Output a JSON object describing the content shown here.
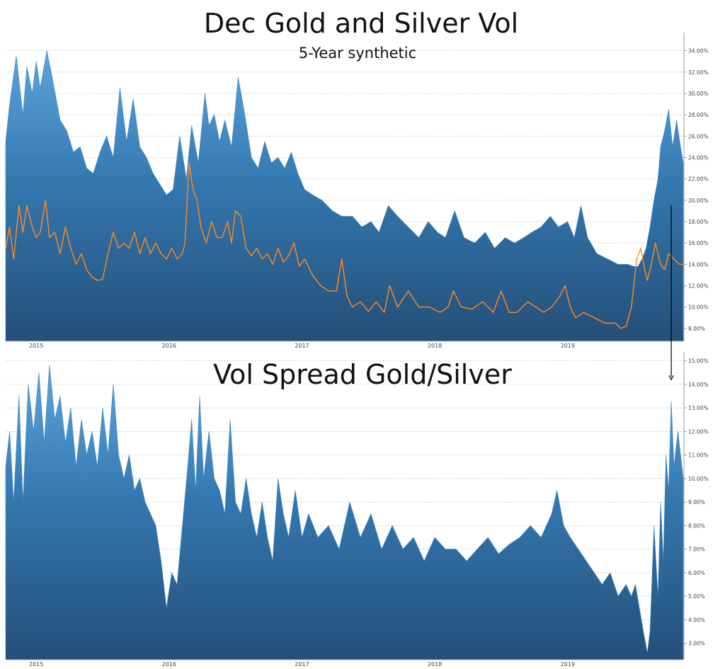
{
  "chart_data": [
    {
      "type": "area",
      "title": "Dec Gold and Silver Vol",
      "subtitle": "5-Year synthetic",
      "x_tick_labels": [
        "2015",
        "2016",
        "2017",
        "2018",
        "2019"
      ],
      "x_tick_years": [
        2015,
        2016,
        2017,
        2018,
        2019
      ],
      "xlim": [
        2014.77,
        2019.87
      ],
      "ylim": [
        6.8,
        35.3
      ],
      "y_ticks": [
        8,
        10,
        12,
        14,
        16,
        18,
        20,
        22,
        24,
        26,
        28,
        30,
        32,
        34
      ],
      "y_tick_labels": [
        "8.00%",
        "10.00%",
        "12.00%",
        "14.00%",
        "16.00%",
        "18.00%",
        "20.00%",
        "22.00%",
        "24.00%",
        "26.00%",
        "28.00%",
        "30.00%",
        "32.00%",
        "34.00%"
      ],
      "grid": true,
      "series": [
        {
          "kind": "area",
          "color": "#3a87c4",
          "x": [
            2014.77,
            2014.8,
            2014.85,
            2014.9,
            2014.93,
            2014.97,
            2015.0,
            2015.03,
            2015.08,
            2015.12,
            2015.18,
            2015.23,
            2015.28,
            2015.33,
            2015.38,
            2015.43,
            2015.48,
            2015.53,
            2015.58,
            2015.63,
            2015.68,
            2015.73,
            2015.78,
            2015.83,
            2015.88,
            2015.93,
            2015.98,
            2016.03,
            2016.08,
            2016.13,
            2016.17,
            2016.22,
            2016.27,
            2016.3,
            2016.34,
            2016.38,
            2016.42,
            2016.47,
            2016.52,
            2016.57,
            2016.62,
            2016.67,
            2016.72,
            2016.77,
            2016.82,
            2016.87,
            2016.92,
            2016.97,
            2017.02,
            2017.08,
            2017.15,
            2017.23,
            2017.3,
            2017.38,
            2017.45,
            2017.52,
            2017.58,
            2017.65,
            2017.72,
            2017.8,
            2017.88,
            2017.95,
            2018.02,
            2018.08,
            2018.15,
            2018.22,
            2018.3,
            2018.38,
            2018.45,
            2018.53,
            2018.6,
            2018.67,
            2018.73,
            2018.8,
            2018.87,
            2018.93,
            2019.0,
            2019.05,
            2019.1,
            2019.15,
            2019.22,
            2019.3,
            2019.38,
            2019.45,
            2019.5,
            2019.53,
            2019.56,
            2019.59,
            2019.62,
            2019.65,
            2019.68,
            2019.7,
            2019.73,
            2019.76,
            2019.79,
            2019.82,
            2019.85,
            2019.87
          ],
          "values": [
            25.5,
            29.0,
            33.5,
            28.0,
            32.5,
            30.0,
            33.0,
            30.5,
            34.0,
            31.5,
            27.5,
            26.5,
            24.5,
            25.0,
            23.0,
            22.5,
            24.5,
            26.0,
            24.0,
            30.5,
            25.5,
            29.5,
            25.0,
            24.0,
            22.5,
            21.5,
            20.5,
            21.0,
            26.0,
            22.0,
            27.0,
            23.5,
            30.0,
            27.0,
            28.0,
            25.5,
            27.5,
            25.0,
            31.5,
            28.0,
            24.0,
            23.0,
            25.5,
            23.5,
            24.0,
            23.0,
            24.5,
            22.5,
            21.0,
            20.5,
            20.0,
            19.0,
            18.5,
            18.5,
            17.5,
            18.0,
            17.0,
            19.5,
            18.5,
            17.5,
            16.5,
            18.0,
            17.0,
            16.5,
            19.0,
            16.5,
            16.0,
            17.0,
            15.5,
            16.5,
            16.0,
            16.5,
            17.0,
            17.5,
            18.5,
            17.5,
            18.0,
            16.5,
            19.5,
            16.5,
            15.0,
            14.5,
            14.0,
            14.0,
            13.8,
            13.8,
            14.5,
            15.5,
            17.5,
            20.0,
            22.0,
            25.0,
            26.5,
            28.5,
            25.0,
            27.5,
            25.0,
            23.5
          ]
        },
        {
          "kind": "line",
          "color": "#ff8a1f",
          "x": [
            2014.77,
            2014.8,
            2014.83,
            2014.87,
            2014.9,
            2014.93,
            2014.97,
            2015.0,
            2015.03,
            2015.07,
            2015.1,
            2015.14,
            2015.18,
            2015.22,
            2015.26,
            2015.3,
            2015.34,
            2015.38,
            2015.42,
            2015.46,
            2015.5,
            2015.54,
            2015.58,
            2015.62,
            2015.66,
            2015.7,
            2015.74,
            2015.78,
            2015.82,
            2015.86,
            2015.9,
            2015.94,
            2015.98,
            2016.02,
            2016.06,
            2016.1,
            2016.12,
            2016.15,
            2016.18,
            2016.21,
            2016.24,
            2016.28,
            2016.32,
            2016.36,
            2016.4,
            2016.44,
            2016.47,
            2016.5,
            2016.54,
            2016.58,
            2016.62,
            2016.66,
            2016.7,
            2016.74,
            2016.78,
            2016.82,
            2016.86,
            2016.9,
            2016.94,
            2016.98,
            2017.02,
            2017.08,
            2017.14,
            2017.2,
            2017.26,
            2017.3,
            2017.34,
            2017.38,
            2017.44,
            2017.5,
            2017.56,
            2017.62,
            2017.66,
            2017.72,
            2017.8,
            2017.88,
            2017.96,
            2018.04,
            2018.1,
            2018.14,
            2018.2,
            2018.28,
            2018.36,
            2018.44,
            2018.5,
            2018.56,
            2018.62,
            2018.7,
            2018.76,
            2018.82,
            2018.88,
            2018.94,
            2018.98,
            2019.02,
            2019.06,
            2019.12,
            2019.2,
            2019.28,
            2019.36,
            2019.4,
            2019.44,
            2019.48,
            2019.52,
            2019.55,
            2019.58,
            2019.6,
            2019.63,
            2019.66,
            2019.7,
            2019.73,
            2019.76,
            2019.8,
            2019.84,
            2019.87
          ],
          "values": [
            15.5,
            17.5,
            14.5,
            19.5,
            17.0,
            19.5,
            17.5,
            16.5,
            17.0,
            20.0,
            16.5,
            17.0,
            15.0,
            17.5,
            15.5,
            14.0,
            15.0,
            13.5,
            12.8,
            12.5,
            12.6,
            15.0,
            17.0,
            15.5,
            16.0,
            15.5,
            17.0,
            15.0,
            16.5,
            15.0,
            16.0,
            15.0,
            14.5,
            15.5,
            14.5,
            15.0,
            16.0,
            23.5,
            21.0,
            20.0,
            17.5,
            16.0,
            18.0,
            16.5,
            16.5,
            18.0,
            16.0,
            19.0,
            18.5,
            15.5,
            14.8,
            15.5,
            14.5,
            15.0,
            14.0,
            15.5,
            14.2,
            14.8,
            16.0,
            13.8,
            14.5,
            13.0,
            12.0,
            11.5,
            11.5,
            14.5,
            11.0,
            10.0,
            10.5,
            9.6,
            10.5,
            9.5,
            12.0,
            10.0,
            11.5,
            10.0,
            10.0,
            9.5,
            10.0,
            11.5,
            10.0,
            9.8,
            10.5,
            9.5,
            11.5,
            9.5,
            9.5,
            10.5,
            10.0,
            9.5,
            10.0,
            11.0,
            12.0,
            10.0,
            9.0,
            9.5,
            9.0,
            8.5,
            8.5,
            8.0,
            8.2,
            10.0,
            14.5,
            15.5,
            13.5,
            12.5,
            14.0,
            16.0,
            14.0,
            13.5,
            15.0,
            14.5,
            14.0,
            14.0
          ]
        }
      ],
      "annotations": [
        {
          "type": "arrow",
          "x": 2019.78,
          "y_from": 19.5,
          "to_lower_chart_y": 14.2,
          "color": "#000000"
        }
      ]
    },
    {
      "type": "area",
      "title": "Vol Spread Gold/Silver",
      "x_tick_labels": [
        "2015",
        "2016",
        "2017",
        "2018",
        "2019"
      ],
      "x_tick_years": [
        2015,
        2016,
        2017,
        2018,
        2019
      ],
      "xlim": [
        2014.77,
        2019.87
      ],
      "ylim": [
        2.3,
        15.2
      ],
      "y_ticks": [
        3,
        4,
        5,
        6,
        7,
        8,
        9,
        10,
        11,
        12,
        13,
        14,
        15
      ],
      "y_tick_labels": [
        "3.00%",
        "4.00%",
        "5.00%",
        "6.00%",
        "7.00%",
        "8.00%",
        "9.00%",
        "10.00%",
        "11.00%",
        "12.00%",
        "13.00%",
        "14.00%",
        "15.00%"
      ],
      "grid": true,
      "series": [
        {
          "kind": "area",
          "color": "#3a87c4",
          "x": [
            2014.77,
            2014.8,
            2014.83,
            2014.87,
            2014.9,
            2014.94,
            2014.98,
            2015.02,
            2015.06,
            2015.1,
            2015.14,
            2015.18,
            2015.22,
            2015.26,
            2015.3,
            2015.34,
            2015.38,
            2015.42,
            2015.46,
            2015.5,
            2015.54,
            2015.58,
            2015.62,
            2015.66,
            2015.7,
            2015.74,
            2015.78,
            2015.82,
            2015.86,
            2015.9,
            2015.94,
            2015.98,
            2016.02,
            2016.06,
            2016.1,
            2016.14,
            2016.17,
            2016.2,
            2016.23,
            2016.26,
            2016.3,
            2016.34,
            2016.38,
            2016.42,
            2016.46,
            2016.5,
            2016.54,
            2016.58,
            2016.62,
            2016.66,
            2016.7,
            2016.74,
            2016.78,
            2016.82,
            2016.86,
            2016.9,
            2016.95,
            2017.0,
            2017.05,
            2017.12,
            2017.2,
            2017.28,
            2017.36,
            2017.44,
            2017.52,
            2017.6,
            2017.68,
            2017.76,
            2017.84,
            2017.92,
            2018.0,
            2018.08,
            2018.16,
            2018.24,
            2018.32,
            2018.4,
            2018.48,
            2018.56,
            2018.64,
            2018.72,
            2018.8,
            2018.88,
            2018.92,
            2018.97,
            2019.02,
            2019.08,
            2019.14,
            2019.2,
            2019.26,
            2019.32,
            2019.38,
            2019.44,
            2019.48,
            2019.51,
            2019.54,
            2019.57,
            2019.6,
            2019.62,
            2019.65,
            2019.68,
            2019.7,
            2019.72,
            2019.74,
            2019.76,
            2019.78,
            2019.8,
            2019.83,
            2019.87
          ],
          "values": [
            10.5,
            12.0,
            9.0,
            13.5,
            9.0,
            14.0,
            12.0,
            14.5,
            11.5,
            14.8,
            12.5,
            13.5,
            11.5,
            13.0,
            10.5,
            12.5,
            11.0,
            12.0,
            10.5,
            13.0,
            11.0,
            14.0,
            11.0,
            10.0,
            11.0,
            9.5,
            10.0,
            9.0,
            8.5,
            8.0,
            6.5,
            4.5,
            6.0,
            5.5,
            8.0,
            10.5,
            12.5,
            9.5,
            13.5,
            10.0,
            12.0,
            10.0,
            9.5,
            8.5,
            12.5,
            9.0,
            8.5,
            10.0,
            8.5,
            7.5,
            9.0,
            7.5,
            6.5,
            10.0,
            8.5,
            7.5,
            9.5,
            7.5,
            8.5,
            7.5,
            8.0,
            7.0,
            9.0,
            7.5,
            8.5,
            7.0,
            8.0,
            7.0,
            7.5,
            6.5,
            7.5,
            7.0,
            7.0,
            6.5,
            7.0,
            7.5,
            6.8,
            7.2,
            7.5,
            8.0,
            7.5,
            8.5,
            9.5,
            8.0,
            7.5,
            7.0,
            6.5,
            6.0,
            5.5,
            6.0,
            5.0,
            5.5,
            5.0,
            5.5,
            4.5,
            3.5,
            2.6,
            3.5,
            8.0,
            5.0,
            9.0,
            6.5,
            11.0,
            9.5,
            13.3,
            10.5,
            12.0,
            10.0
          ]
        }
      ]
    }
  ]
}
